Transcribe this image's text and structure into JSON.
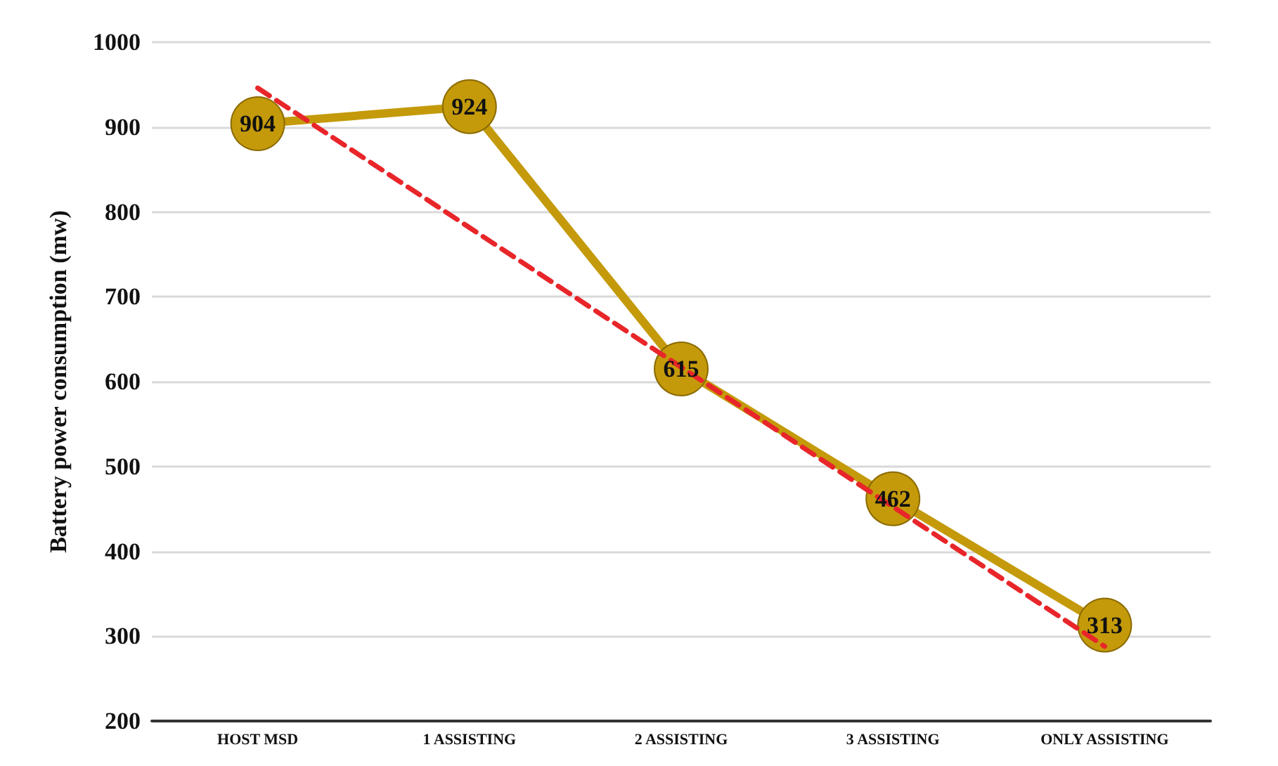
{
  "chart_data": {
    "type": "line",
    "ylabel": "Battery power consumption (mw)",
    "categories": [
      "HOST MSD",
      "1 ASSISTING",
      "2 ASSISTING",
      "3 ASSISTING",
      "ONLY ASSISTING"
    ],
    "series": [
      {
        "color": "#c49a0a",
        "values": [
          904,
          924,
          615,
          462,
          313
        ],
        "marker": "circle",
        "data_labels": true,
        "line_style": "solid"
      },
      {
        "type": "line",
        "color": "#e8262a",
        "x": [
          "HOST MSD",
          "ONLY ASSISTING"
        ],
        "values": [
          946,
          288
        ],
        "marker": "none",
        "line_style": "dashed"
      }
    ],
    "ylim": [
      200,
      1000
    ],
    "yticks": [
      200,
      300,
      400,
      500,
      600,
      700,
      800,
      900,
      1000
    ],
    "grid": "y"
  }
}
